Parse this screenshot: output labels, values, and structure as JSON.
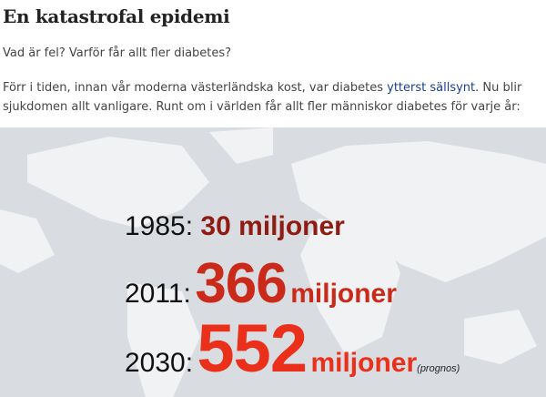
{
  "article": {
    "title": "En katastrofal epidemi",
    "intro": "Vad är fel? Varför får allt fler diabetes?",
    "para_before_link": "Förr i tiden, innan vår moderna västerländska kost, var diabetes ",
    "link": "ytterst sällsynt",
    "para_after_link": ". Nu blir",
    "para_line2": "sjukdomen allt vanligare. Runt om i världen får allt fler människor diabetes för varje år:"
  },
  "infographic": {
    "rows": [
      {
        "year": "1985:",
        "number": "30",
        "unit": "miljoner",
        "color": "#8e1c12"
      },
      {
        "year": "2011:",
        "number": "366",
        "unit": "miljoner",
        "color": "#c92a1a"
      },
      {
        "year": "2030:",
        "number": "552",
        "unit": "miljoner",
        "note": "(prognos)",
        "color": "#ea2f1b"
      }
    ]
  }
}
